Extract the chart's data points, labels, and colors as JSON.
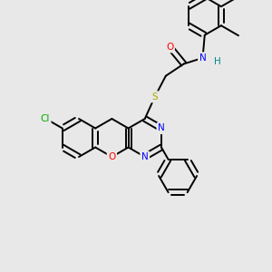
{
  "background_color": "#e8e8e8",
  "atom_colors": {
    "O": "#ff0000",
    "N": "#0000ff",
    "S": "#aaaa00",
    "Cl": "#00aa00",
    "H": "#008888",
    "C": "#000000"
  }
}
